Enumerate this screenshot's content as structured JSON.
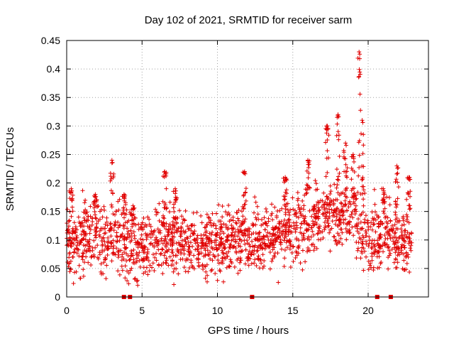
{
  "chart_data": {
    "type": "scatter",
    "title": "Day 102 of 2021, SRMTID for receiver sarm",
    "xlabel": "GPS time / hours",
    "ylabel": "SRMTID / TECUs",
    "xlim": [
      0,
      24
    ],
    "ylim": [
      0,
      0.45
    ],
    "xticks": [
      0,
      5,
      10,
      15,
      20
    ],
    "xtick_labels": [
      "0",
      "5",
      "10",
      "15",
      "20"
    ],
    "yticks": [
      0,
      0.05,
      0.1,
      0.15,
      0.2,
      0.25,
      0.3,
      0.35,
      0.4,
      0.45
    ],
    "ytick_labels": [
      "0",
      "0.05",
      "0.1",
      "0.15",
      "0.2",
      "0.25",
      "0.3",
      "0.35",
      "0.4",
      "0.45"
    ],
    "grid": true,
    "marker": "+",
    "series_color": "#e00000",
    "baseline_markers": {
      "description": "square markers at zero",
      "x": [
        3.8,
        4.2,
        12.3,
        20.6,
        21.5
      ],
      "y": [
        0,
        0,
        0,
        0,
        0
      ]
    },
    "series": [
      {
        "name": "SRMTID",
        "description": "dense scatter of ~3000 points; mostly 0.05-0.15 TECU with spikes",
        "baseline_mean_by_hour": [
          [
            0,
            0.095
          ],
          [
            1,
            0.105
          ],
          [
            2,
            0.11
          ],
          [
            3,
            0.1
          ],
          [
            4,
            0.09
          ],
          [
            5,
            0.085
          ],
          [
            6,
            0.1
          ],
          [
            7,
            0.1
          ],
          [
            8,
            0.095
          ],
          [
            9,
            0.09
          ],
          [
            10,
            0.095
          ],
          [
            11,
            0.1
          ],
          [
            12,
            0.1
          ],
          [
            13,
            0.1
          ],
          [
            14,
            0.11
          ],
          [
            15,
            0.12
          ],
          [
            16,
            0.13
          ],
          [
            17,
            0.145
          ],
          [
            18,
            0.15
          ],
          [
            19,
            0.15
          ],
          [
            20,
            0.1
          ],
          [
            21,
            0.11
          ],
          [
            22,
            0.1
          ],
          [
            23,
            0.095
          ]
        ],
        "spikes": [
          {
            "x": 0.3,
            "y": 0.19
          },
          {
            "x": 1.9,
            "y": 0.18
          },
          {
            "x": 3.0,
            "y": 0.24
          },
          {
            "x": 3.8,
            "y": 0.18
          },
          {
            "x": 4.4,
            "y": 0.16
          },
          {
            "x": 6.5,
            "y": 0.22
          },
          {
            "x": 7.2,
            "y": 0.19
          },
          {
            "x": 11.8,
            "y": 0.22
          },
          {
            "x": 14.5,
            "y": 0.21
          },
          {
            "x": 16.0,
            "y": 0.24
          },
          {
            "x": 17.3,
            "y": 0.3
          },
          {
            "x": 18.0,
            "y": 0.32
          },
          {
            "x": 18.5,
            "y": 0.27
          },
          {
            "x": 19.0,
            "y": 0.25
          },
          {
            "x": 19.4,
            "y": 0.43
          },
          {
            "x": 19.6,
            "y": 0.31
          },
          {
            "x": 21.0,
            "y": 0.19
          },
          {
            "x": 21.9,
            "y": 0.23
          },
          {
            "x": 22.7,
            "y": 0.21
          }
        ],
        "data_extent": [
          0.0,
          22.9
        ]
      }
    ]
  }
}
